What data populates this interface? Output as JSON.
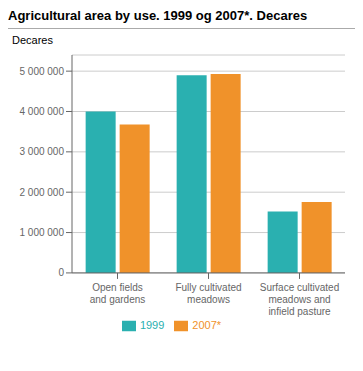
{
  "chart_data": {
    "type": "bar",
    "title": "Agricultural area by use. 1999 og 2007*. Decares",
    "y_label": "Decares",
    "categories": [
      "Open fields\nand gardens",
      "Fully cultivated\nmeadows",
      "Surface cultivated\nmeadows and\ninfield pasture"
    ],
    "series": [
      {
        "name": "1999",
        "color": "#2ab0b0",
        "values": [
          4000000,
          4900000,
          1520000
        ]
      },
      {
        "name": "2007*",
        "color": "#f0922a",
        "values": [
          3680000,
          4930000,
          1760000
        ]
      }
    ],
    "ylim": [
      0,
      5400000
    ],
    "yticks": [
      0,
      {
        "value": 1000000,
        "label": "1 000 000"
      },
      {
        "value": 2000000,
        "label": "2 000 000"
      },
      {
        "value": 3000000,
        "label": "3 000 000"
      },
      {
        "value": 4000000,
        "label": "4 000 000"
      },
      {
        "value": 5000000,
        "label": "5 000 000"
      }
    ],
    "grid": true,
    "legend": "bottom"
  }
}
